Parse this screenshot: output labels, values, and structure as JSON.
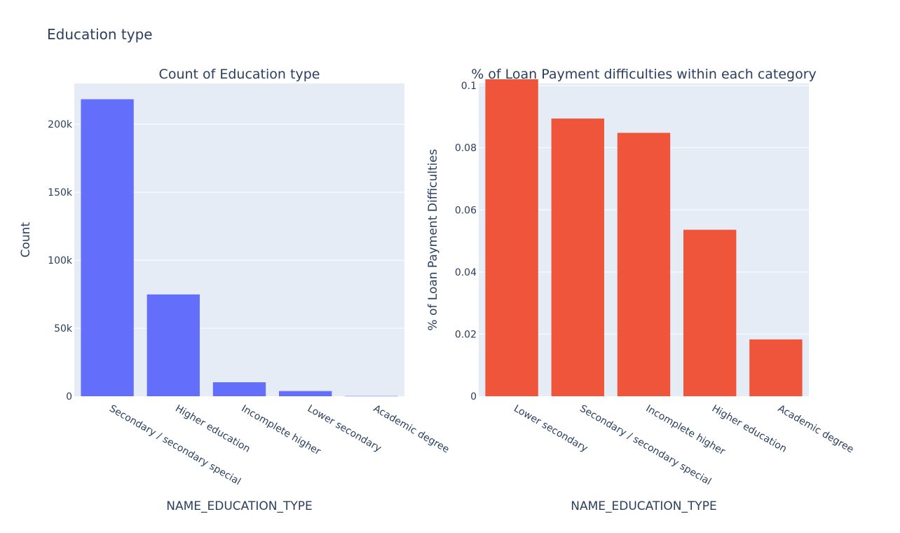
{
  "figure": {
    "title": "Education type"
  },
  "chart_data": [
    {
      "type": "bar",
      "title": "Count of Education type",
      "xlabel": "NAME_EDUCATION_TYPE",
      "ylabel": "Count",
      "categories": [
        "Secondary / secondary special",
        "Higher education",
        "Incomplete higher",
        "Lower secondary",
        "Academic degree"
      ],
      "values": [
        218391,
        74863,
        10277,
        3816,
        164
      ],
      "ylim": [
        0,
        230000
      ],
      "yticks": [
        0,
        50000,
        100000,
        150000,
        200000
      ],
      "ytick_labels": [
        "0",
        "50k",
        "100k",
        "150k",
        "200k"
      ],
      "color": "#636efa",
      "grid": true
    },
    {
      "type": "bar",
      "title": "% of Loan Payment difficulties within each category",
      "xlabel": "NAME_EDUCATION_TYPE",
      "ylabel": "% of Loan Payment Difficulties",
      "categories": [
        "Lower secondary",
        "Secondary / secondary special",
        "Incomplete higher",
        "Higher education",
        "Academic degree"
      ],
      "values": [
        0.1093,
        0.0894,
        0.0848,
        0.0536,
        0.0183
      ],
      "ylim": [
        0,
        0.1007
      ],
      "yticks": [
        0,
        0.02,
        0.04,
        0.06,
        0.08,
        0.1
      ],
      "ytick_labels": [
        "0",
        "0.02",
        "0.04",
        "0.06",
        "0.08",
        "0.1"
      ],
      "color": "#ef553b",
      "grid": true
    }
  ]
}
